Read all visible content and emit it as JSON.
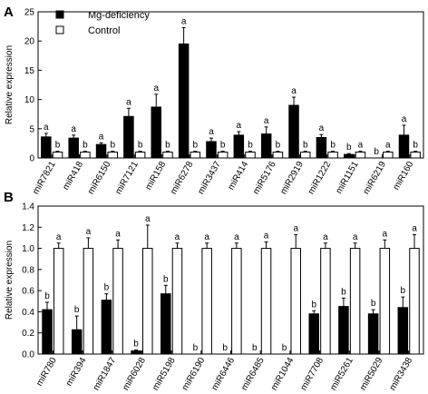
{
  "chart_data": [
    {
      "type": "bar",
      "panel_label": "A",
      "ylabel": "Relative expression",
      "ylim": [
        0,
        25
      ],
      "yticks": [
        "0",
        "5",
        "10",
        "15",
        "20",
        "25"
      ],
      "grid": false,
      "legend": {
        "placement": "top-left",
        "entries": [
          "Mg-deficiency",
          "Control"
        ]
      },
      "categories": [
        "miR7821",
        "miR418",
        "miR6150",
        "miR7121",
        "miR158",
        "miR6278",
        "miR3437",
        "miR414",
        "miR5176",
        "miR2919",
        "miR1222",
        "miR1151",
        "miR6219",
        "miR160"
      ],
      "series": [
        {
          "name": "Mg-deficiency",
          "color": "#000000",
          "values": [
            3.6,
            3.4,
            2.3,
            7.1,
            8.7,
            19.5,
            2.8,
            3.9,
            4.1,
            9.0,
            3.5,
            0.6,
            0.0,
            3.9
          ],
          "errors": [
            0.6,
            0.5,
            0.3,
            1.4,
            2.2,
            2.8,
            0.6,
            0.6,
            1.2,
            1.4,
            0.5,
            0.15,
            0.0,
            1.7
          ],
          "letters": [
            "a",
            "a",
            "a",
            "a",
            "a",
            "a",
            "a",
            "a",
            "a",
            "a",
            "a",
            "b",
            "b",
            "a"
          ]
        },
        {
          "name": "Control",
          "color": "#ffffff",
          "values": [
            1,
            1,
            1,
            1,
            1,
            1,
            1,
            1,
            1,
            1,
            1,
            1,
            1,
            1
          ],
          "errors": [
            0.15,
            0.15,
            0.15,
            0.15,
            0.15,
            0.15,
            0.15,
            0.15,
            0.15,
            0.15,
            0.15,
            0.15,
            0.15,
            0.15
          ],
          "letters": [
            "b",
            "b",
            "b",
            "b",
            "b",
            "b",
            "b",
            "b",
            "b",
            "b",
            "b",
            "a",
            "a",
            "b"
          ]
        }
      ]
    },
    {
      "type": "bar",
      "panel_label": "B",
      "ylabel": "Relative expression",
      "ylim": [
        0,
        1.4
      ],
      "yticks": [
        "0.0",
        "0.2",
        "0.4",
        "0.6",
        "0.8",
        "1.0",
        "1.2",
        "1.4"
      ],
      "grid": false,
      "categories": [
        "miR780",
        "miR394",
        "miR1847",
        "miR6028",
        "miR5198",
        "miR6190",
        "miR6446",
        "miR6485",
        "miR1044",
        "miR7708",
        "miR5261",
        "miR5029",
        "miR3438"
      ],
      "series": [
        {
          "name": "Mg-deficiency",
          "color": "#000000",
          "values": [
            0.42,
            0.23,
            0.51,
            0.03,
            0.57,
            0.0,
            0.0,
            0.0,
            0.0,
            0.38,
            0.45,
            0.38,
            0.44
          ],
          "errors": [
            0.07,
            0.13,
            0.06,
            0.01,
            0.08,
            0.0,
            0.0,
            0.0,
            0.0,
            0.03,
            0.08,
            0.04,
            0.1
          ],
          "letters": [
            "b",
            "b",
            "b",
            "b",
            "b",
            "b",
            "b",
            "b",
            "b",
            "b",
            "b",
            "b",
            "b"
          ]
        },
        {
          "name": "Control",
          "color": "#ffffff",
          "values": [
            1,
            1,
            1,
            1,
            1,
            1,
            1,
            1,
            1,
            1,
            1,
            1,
            1
          ],
          "errors": [
            0.05,
            0.1,
            0.08,
            0.22,
            0.05,
            0.05,
            0.05,
            0.06,
            0.13,
            0.05,
            0.05,
            0.08,
            0.13
          ],
          "letters": [
            "a",
            "a",
            "a",
            "a",
            "a",
            "a",
            "a",
            "a",
            "a",
            "a",
            "a",
            "a",
            "a"
          ]
        }
      ]
    }
  ]
}
